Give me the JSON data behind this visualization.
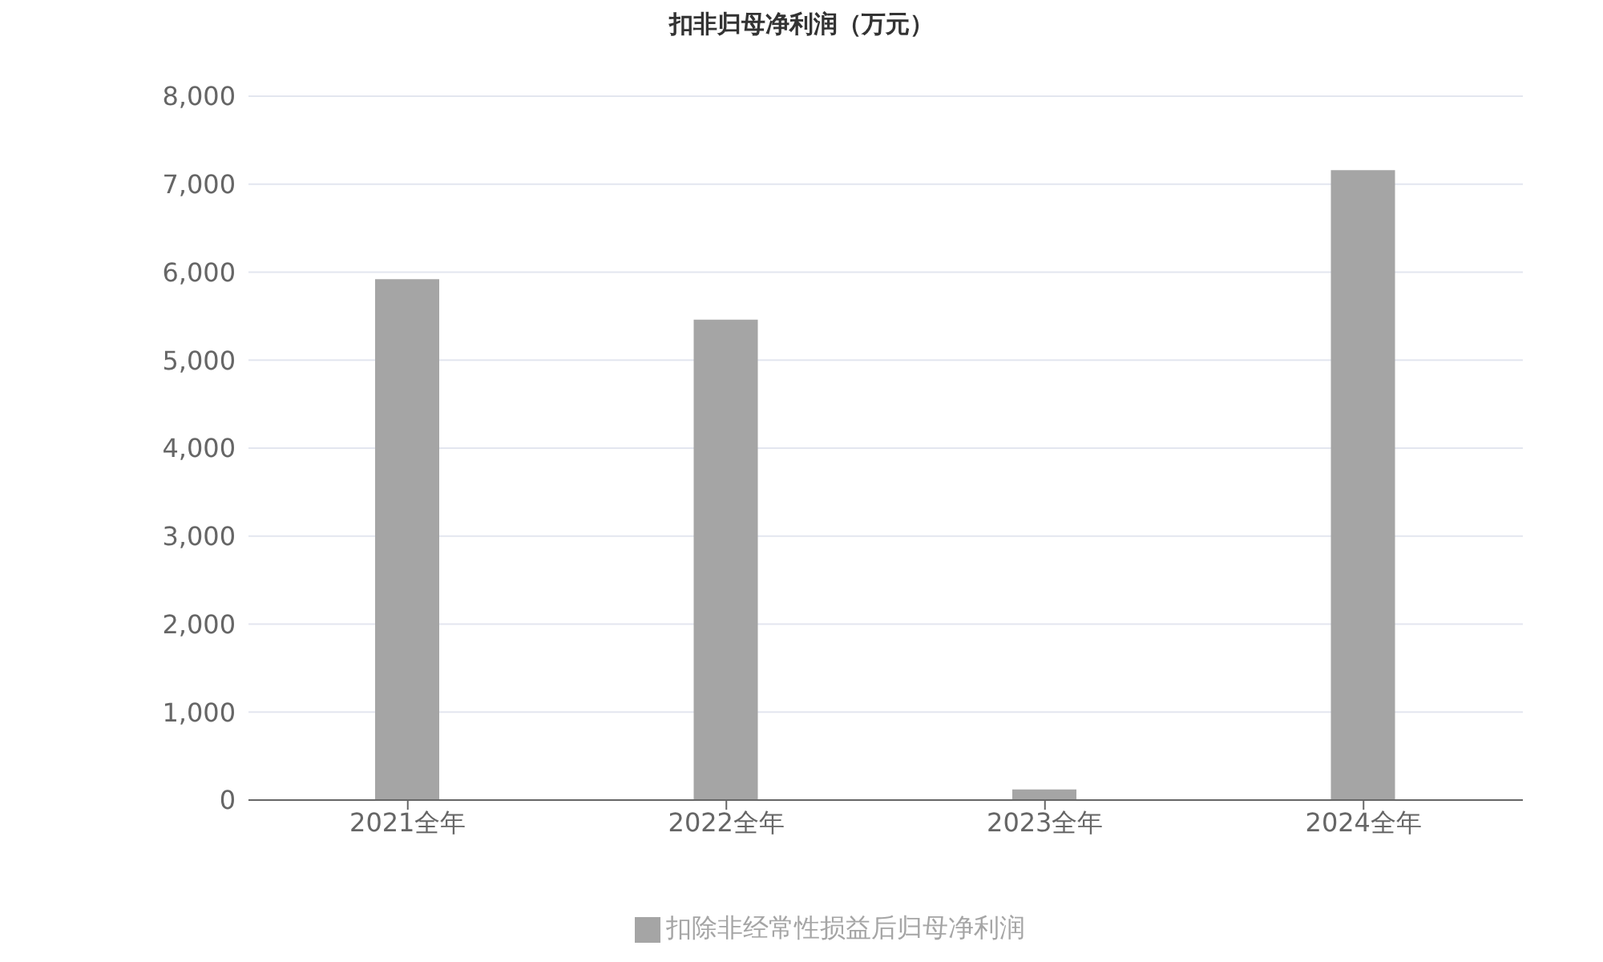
{
  "chart_data": {
    "type": "bar",
    "title": "扣非归母净利润（万元）",
    "categories": [
      "2021全年",
      "2022全年",
      "2023全年",
      "2024全年"
    ],
    "series": [
      {
        "name": "扣除非经常性损益后归母净利润",
        "color": "#a5a5a5",
        "values": [
          5920,
          5460,
          120,
          7160
        ]
      }
    ],
    "ylim": [
      0,
      8000
    ],
    "yticks": [
      0,
      {
        "value": 1000,
        "label": "1,000"
      },
      {
        "value": 2000,
        "label": "2,000"
      },
      {
        "value": 3000,
        "label": "3,000"
      },
      {
        "value": 4000,
        "label": "4,000"
      },
      {
        "value": 5000,
        "label": "5,000"
      },
      {
        "value": 6000,
        "label": "6,000"
      },
      {
        "value": 7000,
        "label": "7,000"
      },
      {
        "value": 8000,
        "label": "8,000"
      }
    ],
    "grid": "y",
    "legend": "bottom"
  }
}
